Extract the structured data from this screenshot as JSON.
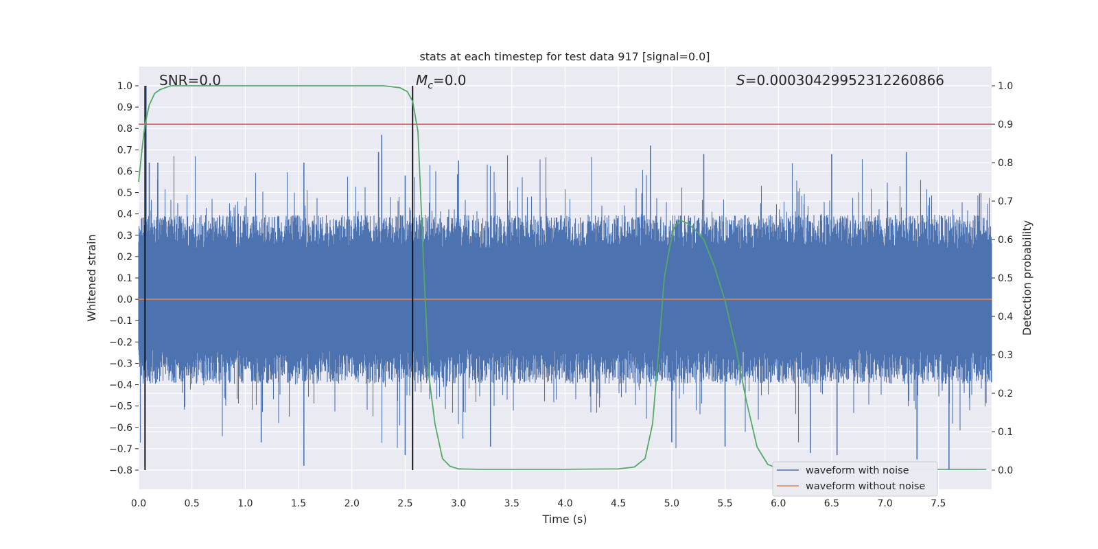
{
  "chart_data": {
    "type": "line",
    "title": "stats at each timestep for test data 917 [signal=0.0]",
    "xlabel": "Time (s)",
    "ylabel_left": "Whitened strain",
    "ylabel_right": "Detection probability",
    "xlim": [
      0.0,
      8.0
    ],
    "ylim_left": [
      -0.89,
      1.09
    ],
    "ylim_right": [
      -0.05,
      1.05
    ],
    "x_ticks": [
      "0.0",
      "0.5",
      "1.0",
      "1.5",
      "2.0",
      "2.5",
      "3.0",
      "3.5",
      "4.0",
      "4.5",
      "5.0",
      "5.5",
      "6.0",
      "6.5",
      "7.0",
      "7.5"
    ],
    "y_ticks_left": [
      "1.0",
      "0.9",
      "0.8",
      "0.7",
      "0.6",
      "0.5",
      "0.4",
      "0.3",
      "0.2",
      "0.1",
      "0.0",
      "−0.1",
      "−0.2",
      "−0.3",
      "−0.4",
      "−0.5",
      "−0.6",
      "−0.7",
      "−0.8"
    ],
    "y_ticks_right": [
      "1.0",
      "0.9",
      "0.8",
      "0.7",
      "0.6",
      "0.5",
      "0.4",
      "0.3",
      "0.2",
      "0.1",
      "0.0"
    ],
    "grid": true,
    "legend_position": "lower-right",
    "annotations": {
      "snr": "SNR=0.0",
      "mc_symbol": "M",
      "mc_sub": "c",
      "mc_value": "=0.0",
      "s_symbol": "S",
      "s_value": "=0.00030429952312260866"
    },
    "series": [
      {
        "name": "waveform with noise",
        "color": "#4c72b0",
        "description_kind": "noise",
        "envelope_upper_typical": 0.36,
        "envelope_lower_typical": -0.36,
        "peaks": [
          [
            0.07,
            1.0
          ],
          [
            0.1,
            0.64
          ],
          [
            0.18,
            0.64
          ],
          [
            1.55,
            0.64
          ],
          [
            2.25,
            0.69
          ],
          [
            2.28,
            0.77
          ],
          [
            2.5,
            0.58
          ],
          [
            3.0,
            0.65
          ],
          [
            4.8,
            0.72
          ],
          [
            5.3,
            0.68
          ],
          [
            6.5,
            0.68
          ],
          [
            7.2,
            0.69
          ]
        ],
        "troughs": [
          [
            1.55,
            -0.78
          ],
          [
            2.5,
            -0.73
          ],
          [
            3.3,
            -0.69
          ],
          [
            5.5,
            -0.69
          ],
          [
            6.3,
            -0.72
          ],
          [
            6.55,
            -0.73
          ],
          [
            7.3,
            -0.75
          ],
          [
            7.6,
            -0.8
          ],
          [
            5.0,
            -0.67
          ],
          [
            1.15,
            -0.67
          ]
        ]
      },
      {
        "name": "waveform without noise",
        "color": "#dd8452",
        "x": [
          0.0,
          8.0
        ],
        "y": [
          0.0,
          0.0
        ]
      },
      {
        "name": "detection probability",
        "color": "#55a868",
        "axis": "right",
        "x": [
          0.0,
          0.03,
          0.06,
          0.1,
          0.15,
          0.2,
          0.3,
          0.5,
          1.0,
          2.0,
          2.3,
          2.45,
          2.52,
          2.57,
          2.62,
          2.67,
          2.72,
          2.78,
          2.85,
          2.92,
          3.0,
          3.2,
          4.0,
          4.5,
          4.65,
          4.75,
          4.82,
          4.88,
          4.93,
          4.98,
          5.02,
          5.08,
          5.15,
          5.22,
          5.3,
          5.4,
          5.5,
          5.6,
          5.7,
          5.8,
          5.9,
          6.0,
          6.5,
          7.0,
          7.5,
          7.95
        ],
        "y": [
          0.75,
          0.83,
          0.9,
          0.95,
          0.98,
          0.99,
          1.0,
          1.0,
          1.0,
          1.0,
          1.0,
          0.995,
          0.985,
          0.96,
          0.88,
          0.55,
          0.25,
          0.12,
          0.03,
          0.01,
          0.003,
          0.002,
          0.002,
          0.003,
          0.008,
          0.03,
          0.12,
          0.32,
          0.5,
          0.58,
          0.63,
          0.65,
          0.642,
          0.625,
          0.6,
          0.53,
          0.44,
          0.32,
          0.18,
          0.06,
          0.015,
          0.003,
          0.002,
          0.002,
          0.002,
          0.002
        ]
      }
    ],
    "vertical_lines": [
      0.06,
      2.57
    ],
    "vertical_lines_color": "#000000",
    "threshold": {
      "value": 0.9,
      "axis": "right",
      "color": "#c44e52"
    }
  }
}
